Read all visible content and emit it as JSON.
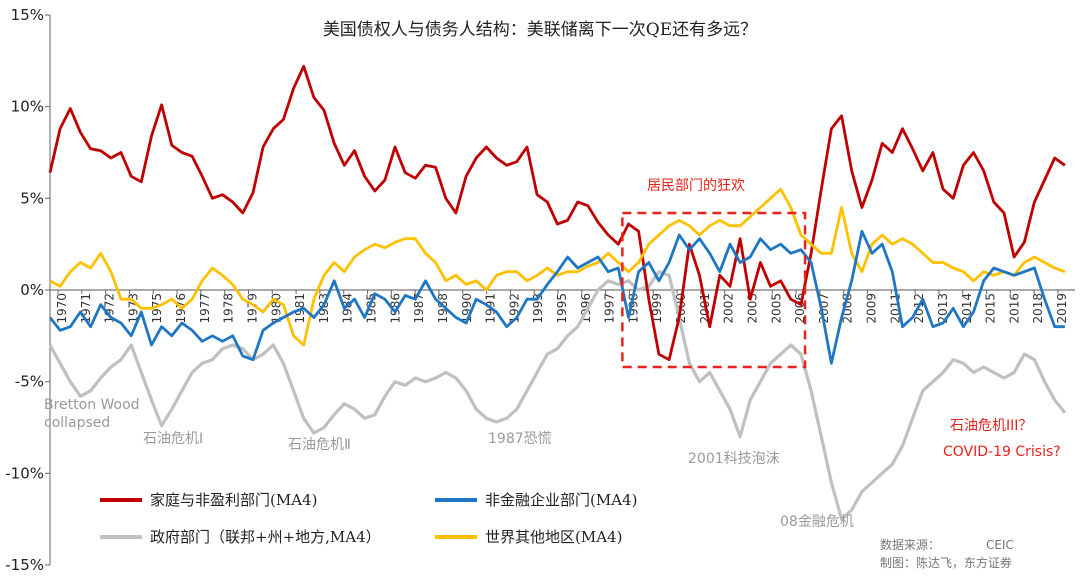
{
  "chart_data": {
    "type": "line",
    "title": "美国债权人与债务人结构：美联储离下一次QE还有多远？",
    "ylim": [
      -15,
      15
    ],
    "yticks": [
      15,
      10,
      5,
      0,
      -5,
      -10,
      -15
    ],
    "ytick_labels": [
      "15%",
      "10%",
      "5%",
      "0%",
      "-5%",
      "-10%",
      "-15%"
    ],
    "xlim": [
      1970,
      2020.5
    ],
    "xtick_labels": [
      "1970",
      "1971",
      "1972",
      "1973",
      "1975",
      "1976",
      "1977",
      "1978",
      "1979",
      "1980",
      "1981",
      "1983",
      "1984",
      "1985",
      "1986",
      "1987",
      "1988",
      "1990",
      "1991",
      "1992",
      "1993",
      "1995",
      "1996",
      "1997",
      "1998",
      "1999",
      "2000",
      "2001",
      "2002",
      "2003",
      "2005",
      "2006",
      "2007",
      "2008",
      "2009",
      "2011",
      "2012",
      "2013",
      "2014",
      "2015",
      "2016",
      "2018",
      "2019"
    ],
    "series": [
      {
        "name": "家庭与非盈利部门(MA4)",
        "color": "#c00000",
        "x": [
          1970.0,
          1970.5,
          1971.0,
          1971.5,
          1972.0,
          1972.5,
          1973.0,
          1973.5,
          1974.0,
          1974.5,
          1975.0,
          1975.5,
          1976.0,
          1976.5,
          1977.0,
          1977.5,
          1978.0,
          1978.5,
          1979.0,
          1979.5,
          1980.0,
          1980.5,
          1981.0,
          1981.5,
          1982.0,
          1982.5,
          1983.0,
          1983.5,
          1984.0,
          1984.5,
          1985.0,
          1985.5,
          1986.0,
          1986.5,
          1987.0,
          1987.5,
          1988.0,
          1988.5,
          1989.0,
          1989.5,
          1990.0,
          1990.5,
          1991.0,
          1991.5,
          1992.0,
          1992.5,
          1993.0,
          1993.5,
          1994.0,
          1994.5,
          1995.0,
          1995.5,
          1996.0,
          1996.5,
          1997.0,
          1997.5,
          1998.0,
          1998.5,
          1999.0,
          1999.5,
          2000.0,
          2000.5,
          2001.0,
          2001.5,
          2002.0,
          2002.5,
          2003.0,
          2003.5,
          2004.0,
          2004.5,
          2005.0,
          2005.5,
          2006.0,
          2006.5,
          2007.0,
          2007.5,
          2008.0,
          2008.5,
          2009.0,
          2009.5,
          2010.0,
          2010.5,
          2011.0,
          2011.5,
          2012.0,
          2012.5,
          2013.0,
          2013.5,
          2014.0,
          2014.5,
          2015.0,
          2015.5,
          2016.0,
          2016.5,
          2017.0,
          2017.5,
          2018.0,
          2018.5,
          2019.0,
          2019.5,
          2020.0
        ],
        "y": [
          6.4,
          8.8,
          9.9,
          8.6,
          7.7,
          7.6,
          7.2,
          7.5,
          6.2,
          5.9,
          8.4,
          10.1,
          7.9,
          7.5,
          7.3,
          6.2,
          5.0,
          5.2,
          4.8,
          4.2,
          5.3,
          7.8,
          8.8,
          9.3,
          11.0,
          12.2,
          10.5,
          9.8,
          8.0,
          6.8,
          7.6,
          6.2,
          5.4,
          6.0,
          7.8,
          6.4,
          6.1,
          6.8,
          6.7,
          5.0,
          4.2,
          6.2,
          7.2,
          7.8,
          7.2,
          6.8,
          7.0,
          7.8,
          5.2,
          4.8,
          3.6,
          3.8,
          4.8,
          4.6,
          3.7,
          3.0,
          2.5,
          3.6,
          3.2,
          -0.5,
          -3.5,
          -3.8,
          -1.5,
          2.5,
          0.8,
          -2.0,
          0.8,
          0.2,
          2.8,
          -0.5,
          1.5,
          0.2,
          0.5,
          -0.5,
          -0.8,
          2.0,
          5.5,
          8.8,
          9.5,
          6.5,
          4.5,
          6.0,
          8.0,
          7.5,
          8.8,
          7.7,
          6.5,
          7.5,
          5.5,
          5.0,
          6.8,
          7.5,
          6.5,
          4.8,
          4.2,
          1.8,
          2.6,
          4.8,
          6.0,
          7.2,
          6.8
        ]
      },
      {
        "name": "非金融企业部门(MA4)",
        "color": "#1f77c4",
        "x": [
          1970.0,
          1970.5,
          1971.0,
          1971.5,
          1972.0,
          1972.5,
          1973.0,
          1973.5,
          1974.0,
          1974.5,
          1975.0,
          1975.5,
          1976.0,
          1976.5,
          1977.0,
          1977.5,
          1978.0,
          1978.5,
          1979.0,
          1979.5,
          1980.0,
          1980.5,
          1981.0,
          1981.5,
          1982.0,
          1982.5,
          1983.0,
          1983.5,
          1984.0,
          1984.5,
          1985.0,
          1985.5,
          1986.0,
          1986.5,
          1987.0,
          1987.5,
          1988.0,
          1988.5,
          1989.0,
          1989.5,
          1990.0,
          1990.5,
          1991.0,
          1991.5,
          1992.0,
          1992.5,
          1993.0,
          1993.5,
          1994.0,
          1994.5,
          1995.0,
          1995.5,
          1996.0,
          1996.5,
          1997.0,
          1997.5,
          1998.0,
          1998.5,
          1999.0,
          1999.5,
          2000.0,
          2000.5,
          2001.0,
          2001.5,
          2002.0,
          2002.5,
          2003.0,
          2003.5,
          2004.0,
          2004.5,
          2005.0,
          2005.5,
          2006.0,
          2006.5,
          2007.0,
          2007.5,
          2008.0,
          2008.5,
          2009.0,
          2009.5,
          2010.0,
          2010.5,
          2011.0,
          2011.5,
          2012.0,
          2012.5,
          2013.0,
          2013.5,
          2014.0,
          2014.5,
          2015.0,
          2015.5,
          2016.0,
          2016.5,
          2017.0,
          2017.5,
          2018.0,
          2018.5,
          2019.0,
          2019.5,
          2020.0
        ],
        "y": [
          -1.5,
          -2.2,
          -2.0,
          -1.2,
          -2.0,
          -0.8,
          -1.5,
          -1.8,
          -2.5,
          -1.2,
          -3.0,
          -2.0,
          -2.5,
          -1.8,
          -2.2,
          -2.8,
          -2.5,
          -2.8,
          -2.5,
          -3.6,
          -3.8,
          -2.2,
          -1.8,
          -1.5,
          -1.2,
          -1.0,
          -1.5,
          -0.8,
          0.5,
          -1.0,
          -0.5,
          -1.5,
          -0.2,
          -0.5,
          -1.2,
          -0.3,
          -0.5,
          0.5,
          -0.5,
          -1.0,
          -1.5,
          -1.8,
          -0.5,
          -0.8,
          -1.2,
          -2.0,
          -1.5,
          -0.5,
          -0.5,
          0.3,
          1.0,
          1.8,
          1.2,
          1.5,
          1.8,
          1.0,
          1.2,
          -1.5,
          1.0,
          1.5,
          0.5,
          1.5,
          3.0,
          2.2,
          2.8,
          2.0,
          1.0,
          2.5,
          1.5,
          1.8,
          2.8,
          2.2,
          2.5,
          2.0,
          2.2,
          1.5,
          -1.0,
          -4.0,
          -1.5,
          0.5,
          3.2,
          2.0,
          2.5,
          1.0,
          -2.0,
          -1.5,
          -0.5,
          -2.0,
          -1.8,
          -1.0,
          -2.0,
          -1.2,
          0.5,
          1.2,
          1.0,
          0.8,
          1.0,
          1.2,
          -0.5,
          -2.0,
          -2.0
        ]
      },
      {
        "name": "政府部门（联邦+州+地方,MA4）",
        "color": "#c0c0c0",
        "x": [
          1970.0,
          1970.5,
          1971.0,
          1971.5,
          1972.0,
          1972.5,
          1973.0,
          1973.5,
          1974.0,
          1974.5,
          1975.0,
          1975.5,
          1976.0,
          1976.5,
          1977.0,
          1977.5,
          1978.0,
          1978.5,
          1979.0,
          1979.5,
          1980.0,
          1980.5,
          1981.0,
          1981.5,
          1982.0,
          1982.5,
          1983.0,
          1983.5,
          1984.0,
          1984.5,
          1985.0,
          1985.5,
          1986.0,
          1986.5,
          1987.0,
          1987.5,
          1988.0,
          1988.5,
          1989.0,
          1989.5,
          1990.0,
          1990.5,
          1991.0,
          1991.5,
          1992.0,
          1992.5,
          1993.0,
          1993.5,
          1994.0,
          1994.5,
          1995.0,
          1995.5,
          1996.0,
          1996.5,
          1997.0,
          1997.5,
          1998.0,
          1998.5,
          1999.0,
          1999.5,
          2000.0,
          2000.5,
          2001.0,
          2001.5,
          2002.0,
          2002.5,
          2003.0,
          2003.5,
          2004.0,
          2004.5,
          2005.0,
          2005.5,
          2006.0,
          2006.5,
          2007.0,
          2007.5,
          2008.0,
          2008.5,
          2009.0,
          2009.5,
          2010.0,
          2010.5,
          2011.0,
          2011.5,
          2012.0,
          2012.5,
          2013.0,
          2013.5,
          2014.0,
          2014.5,
          2015.0,
          2015.5,
          2016.0,
          2016.5,
          2017.0,
          2017.5,
          2018.0,
          2018.5,
          2019.0,
          2019.5,
          2020.0
        ],
        "y": [
          -3.0,
          -4.0,
          -5.0,
          -5.8,
          -5.5,
          -4.8,
          -4.2,
          -3.8,
          -3.0,
          -4.5,
          -6.0,
          -7.4,
          -6.5,
          -5.5,
          -4.5,
          -4.0,
          -3.8,
          -3.2,
          -3.0,
          -3.2,
          -3.8,
          -3.5,
          -3.0,
          -4.0,
          -5.5,
          -7.0,
          -7.8,
          -7.5,
          -6.8,
          -6.2,
          -6.5,
          -7.0,
          -6.8,
          -5.8,
          -5.0,
          -5.2,
          -4.8,
          -5.0,
          -4.8,
          -4.5,
          -4.8,
          -5.5,
          -6.5,
          -7.0,
          -7.2,
          -7.0,
          -6.5,
          -5.5,
          -4.5,
          -3.5,
          -3.2,
          -2.5,
          -2.0,
          -1.0,
          0.0,
          0.5,
          0.3,
          0.5,
          0.0,
          0.2,
          1.0,
          0.8,
          -1.5,
          -4.0,
          -5.0,
          -4.5,
          -5.5,
          -6.5,
          -8.0,
          -6.0,
          -5.0,
          -4.0,
          -3.5,
          -3.0,
          -3.5,
          -5.5,
          -8.0,
          -10.5,
          -12.5,
          -12.0,
          -11.0,
          -10.5,
          -10.0,
          -9.5,
          -8.5,
          -7.0,
          -5.5,
          -5.0,
          -4.5,
          -3.8,
          -4.0,
          -4.5,
          -4.2,
          -4.5,
          -4.8,
          -4.5,
          -3.5,
          -3.8,
          -5.0,
          -6.0,
          -6.7
        ]
      },
      {
        "name": "世界其他地区(MA4)",
        "color": "#ffc000",
        "x": [
          1970.0,
          1970.5,
          1971.0,
          1971.5,
          1972.0,
          1972.5,
          1973.0,
          1973.5,
          1974.0,
          1974.5,
          1975.0,
          1975.5,
          1976.0,
          1976.5,
          1977.0,
          1977.5,
          1978.0,
          1978.5,
          1979.0,
          1979.5,
          1980.0,
          1980.5,
          1981.0,
          1981.5,
          1982.0,
          1982.5,
          1983.0,
          1983.5,
          1984.0,
          1984.5,
          1985.0,
          1985.5,
          1986.0,
          1986.5,
          1987.0,
          1987.5,
          1988.0,
          1988.5,
          1989.0,
          1989.5,
          1990.0,
          1990.5,
          1991.0,
          1991.5,
          1992.0,
          1992.5,
          1993.0,
          1993.5,
          1994.0,
          1994.5,
          1995.0,
          1995.5,
          1996.0,
          1996.5,
          1997.0,
          1997.5,
          1998.0,
          1998.5,
          1999.0,
          1999.5,
          2000.0,
          2000.5,
          2001.0,
          2001.5,
          2002.0,
          2002.5,
          2003.0,
          2003.5,
          2004.0,
          2004.5,
          2005.0,
          2005.5,
          2006.0,
          2006.5,
          2007.0,
          2007.5,
          2008.0,
          2008.5,
          2009.0,
          2009.5,
          2010.0,
          2010.5,
          2011.0,
          2011.5,
          2012.0,
          2012.5,
          2013.0,
          2013.5,
          2014.0,
          2014.5,
          2015.0,
          2015.5,
          2016.0,
          2016.5,
          2017.0,
          2017.5,
          2018.0,
          2018.5,
          2019.0,
          2019.5,
          2020.0
        ],
        "y": [
          0.5,
          0.2,
          1.0,
          1.5,
          1.2,
          2.0,
          1.0,
          -0.5,
          -0.5,
          -1.0,
          -1.0,
          -0.8,
          -0.5,
          -1.0,
          -0.5,
          0.5,
          1.2,
          0.8,
          0.3,
          -0.5,
          -0.8,
          -1.2,
          -0.5,
          -0.8,
          -2.5,
          -3.0,
          -0.5,
          0.8,
          1.5,
          1.0,
          1.8,
          2.2,
          2.5,
          2.3,
          2.6,
          2.8,
          2.8,
          2.0,
          1.5,
          0.5,
          0.8,
          0.3,
          0.5,
          0.0,
          0.8,
          1.0,
          1.0,
          0.5,
          0.8,
          1.2,
          0.8,
          1.0,
          1.0,
          1.3,
          1.5,
          2.0,
          1.5,
          1.0,
          1.5,
          2.5,
          3.0,
          3.5,
          3.8,
          3.5,
          3.0,
          3.5,
          3.8,
          3.5,
          3.5,
          4.0,
          4.5,
          5.0,
          5.5,
          4.5,
          3.0,
          2.5,
          2.0,
          2.0,
          4.5,
          2.0,
          1.0,
          2.5,
          3.0,
          2.5,
          2.8,
          2.5,
          2.0,
          1.5,
          1.5,
          1.2,
          1.0,
          0.5,
          1.0,
          0.8,
          1.0,
          0.8,
          1.5,
          1.8,
          1.5,
          1.2,
          1.0
        ]
      }
    ],
    "annotations_gray": {
      "bretton_line1": "Bretton Wood",
      "bretton_line2": "collapsed",
      "oil1": "石油危机Ⅰ",
      "oil2": "石油危机Ⅱ",
      "crash1987": "1987恐慌",
      "dotcom": "2001科技泡沫",
      "gfc": "08金融危机"
    },
    "annotations_red": {
      "frenzy": "居民部门的狂欢",
      "oil3": "石油危机III？",
      "covid": "COVID-19 Crisis?"
    },
    "box": {
      "x_range": [
        1998.2,
        2007.2
      ],
      "y_range": [
        -4.2,
        4.2
      ],
      "color": "#e8231c"
    },
    "source_line1": "数据来源：",
    "source_line2": "制图：陈达飞，东方证券",
    "watermark": "CEIC"
  }
}
